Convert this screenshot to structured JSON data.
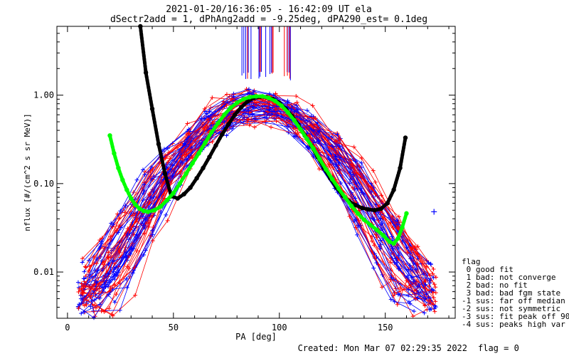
{
  "chart_data": {
    "type": "line",
    "title": "2021-01-20/16:36:05 - 16:42:09 UT ela",
    "subtitle": "dSectr2add = 1, dPhAng2add = -9.25deg, dPA290_est=   0.1deg",
    "xlabel": "PA [deg]",
    "ylabel": "nflux [#/(cm^2 s sr MeV)]",
    "xlim": [
      -5,
      183
    ],
    "ylim": [
      0.003,
      6.0
    ],
    "yscale": "log",
    "x_ticks": [
      0,
      50,
      100,
      150
    ],
    "x_tick_labels": [
      "0",
      "50",
      "100",
      "150"
    ],
    "y_ticks": [
      0.01,
      0.1,
      1.0
    ],
    "y_tick_labels": [
      "0.01",
      "0.10",
      "1.00"
    ],
    "grid": false,
    "legend_position": "right",
    "series": [
      {
        "kind": "fit",
        "color": "#000000",
        "x": [
          34.4,
          37,
          40,
          43,
          46,
          49,
          52,
          55,
          58,
          61,
          64,
          67,
          70,
          73,
          76,
          79,
          82,
          85,
          88,
          91,
          94,
          97,
          100,
          103,
          106,
          109,
          112,
          115,
          118,
          121,
          124,
          127,
          130,
          133,
          136,
          139,
          142,
          145,
          148,
          151,
          154,
          157,
          159.5
        ],
        "y": [
          6.0,
          1.8,
          0.7,
          0.28,
          0.13,
          0.072,
          0.068,
          0.076,
          0.09,
          0.115,
          0.15,
          0.2,
          0.27,
          0.36,
          0.47,
          0.6,
          0.73,
          0.85,
          0.93,
          0.96,
          0.95,
          0.9,
          0.82,
          0.7,
          0.58,
          0.46,
          0.35,
          0.27,
          0.2,
          0.15,
          0.115,
          0.09,
          0.073,
          0.063,
          0.057,
          0.053,
          0.051,
          0.05,
          0.052,
          0.06,
          0.085,
          0.15,
          0.33
        ]
      },
      {
        "kind": "fit",
        "color": "#00ff00",
        "x": [
          20,
          22,
          24,
          26,
          28,
          30,
          32,
          34,
          36,
          38,
          41,
          44,
          47,
          50,
          53,
          56,
          59,
          62,
          65,
          68,
          71,
          74,
          77,
          80,
          83,
          86,
          89,
          92,
          95,
          98,
          101,
          104,
          107,
          110,
          113,
          116,
          119,
          122,
          125,
          128,
          131,
          134,
          137,
          140,
          143,
          146,
          149,
          152,
          154,
          156,
          158,
          160
        ],
        "y": [
          0.35,
          0.22,
          0.15,
          0.11,
          0.085,
          0.068,
          0.058,
          0.052,
          0.049,
          0.048,
          0.05,
          0.055,
          0.065,
          0.078,
          0.1,
          0.13,
          0.17,
          0.22,
          0.29,
          0.38,
          0.48,
          0.6,
          0.72,
          0.82,
          0.9,
          0.95,
          0.97,
          0.97,
          0.93,
          0.86,
          0.76,
          0.64,
          0.52,
          0.41,
          0.32,
          0.25,
          0.19,
          0.145,
          0.112,
          0.088,
          0.07,
          0.056,
          0.046,
          0.039,
          0.034,
          0.03,
          0.026,
          0.022,
          0.021,
          0.024,
          0.032,
          0.046
        ]
      }
    ],
    "annotations": {
      "created": "Created: Mon Mar 07 02:29:35 2022",
      "flag": "flag = 0"
    },
    "legend": {
      "title": "flag",
      "entries": [
        " 0 good fit",
        " 1 bad: not converge",
        " 2 bad: no fit",
        " 3 bad: bad fgm state",
        "-1 sus: far off median",
        "-2 sus: not symmetric",
        "-3 sus: fit peak off 90",
        "-4 sus: peaks high var"
      ]
    }
  }
}
